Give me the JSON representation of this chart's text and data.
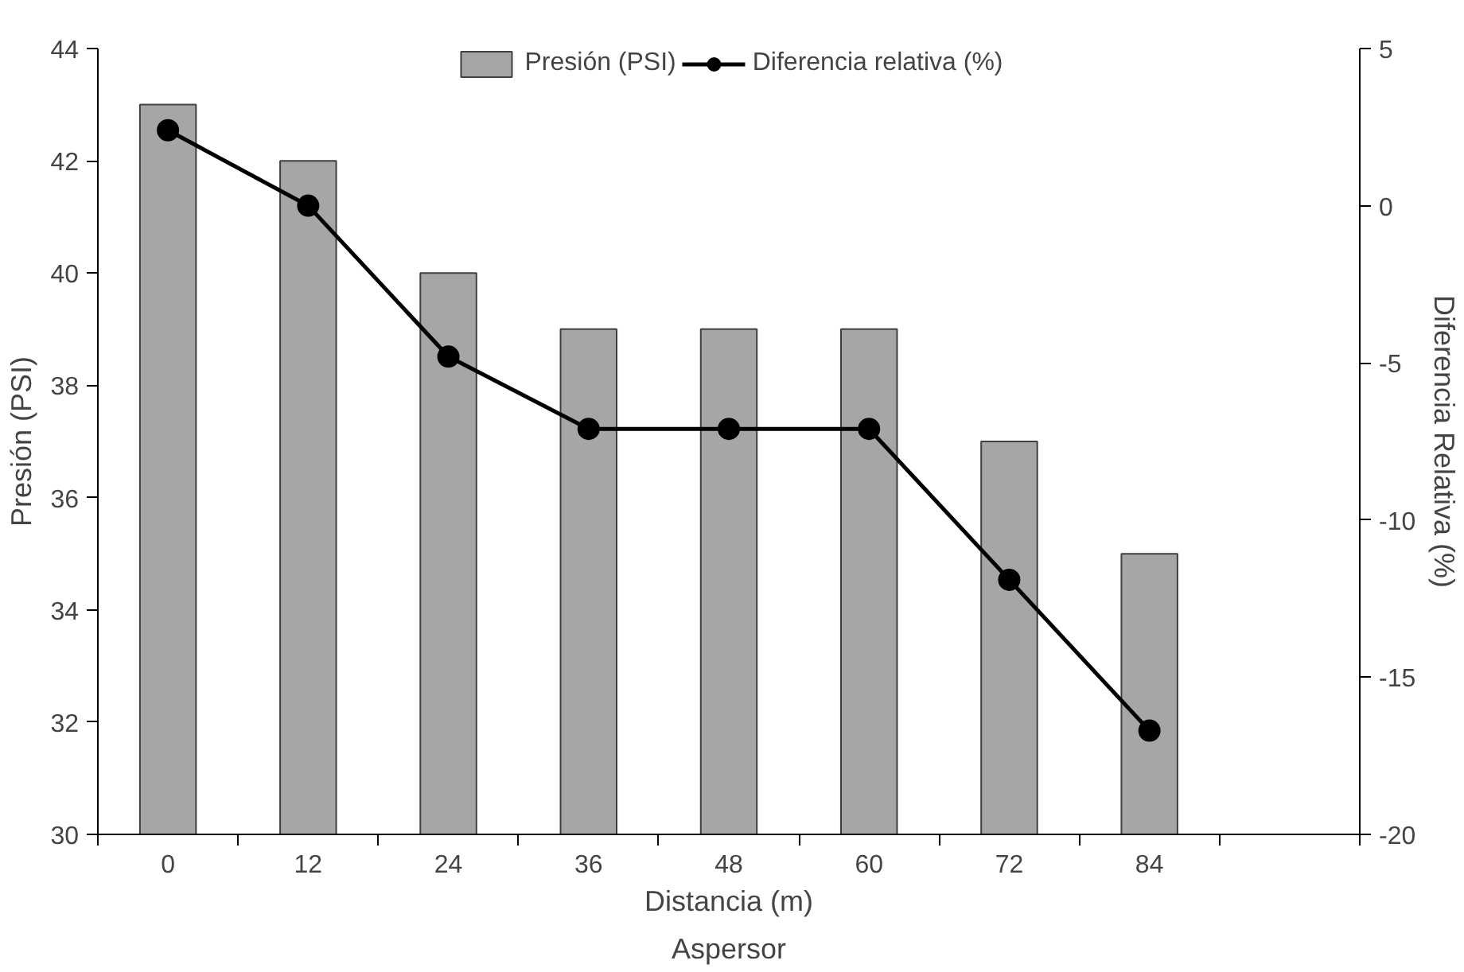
{
  "chart_data": {
    "type": "bar",
    "xlabel": "Distancia (m)",
    "ylabel": "Presión (PSI)",
    "y2label": "Diferencia Relativa (%)",
    "annotations": [
      "Aspersor"
    ],
    "categories": [
      "0",
      "12",
      "24",
      "36",
      "48",
      "60",
      "72",
      "84",
      null
    ],
    "series": [
      {
        "name": "Presión (PSI)",
        "color": "#a6a6a6",
        "values": [
          43,
          42,
          40,
          39,
          39,
          39,
          37,
          35,
          null
        ]
      },
      {
        "name": "Diferencia relativa (%)",
        "type": "line",
        "axis": "y2",
        "color": "#000000",
        "marker": "circle",
        "line_style": "solid",
        "values": [
          2.4,
          0,
          -4.8,
          -7.1,
          -7.1,
          -7.1,
          -11.9,
          -16.7,
          null
        ]
      }
    ],
    "ylim": [
      30,
      44
    ],
    "yticks": [
      30,
      32,
      34,
      36,
      38,
      40,
      42,
      44
    ],
    "y2lim": [
      -20,
      5
    ],
    "y2ticks": [
      -20,
      -15,
      -10,
      -5,
      0,
      5
    ],
    "grid": false,
    "legend": "top"
  }
}
